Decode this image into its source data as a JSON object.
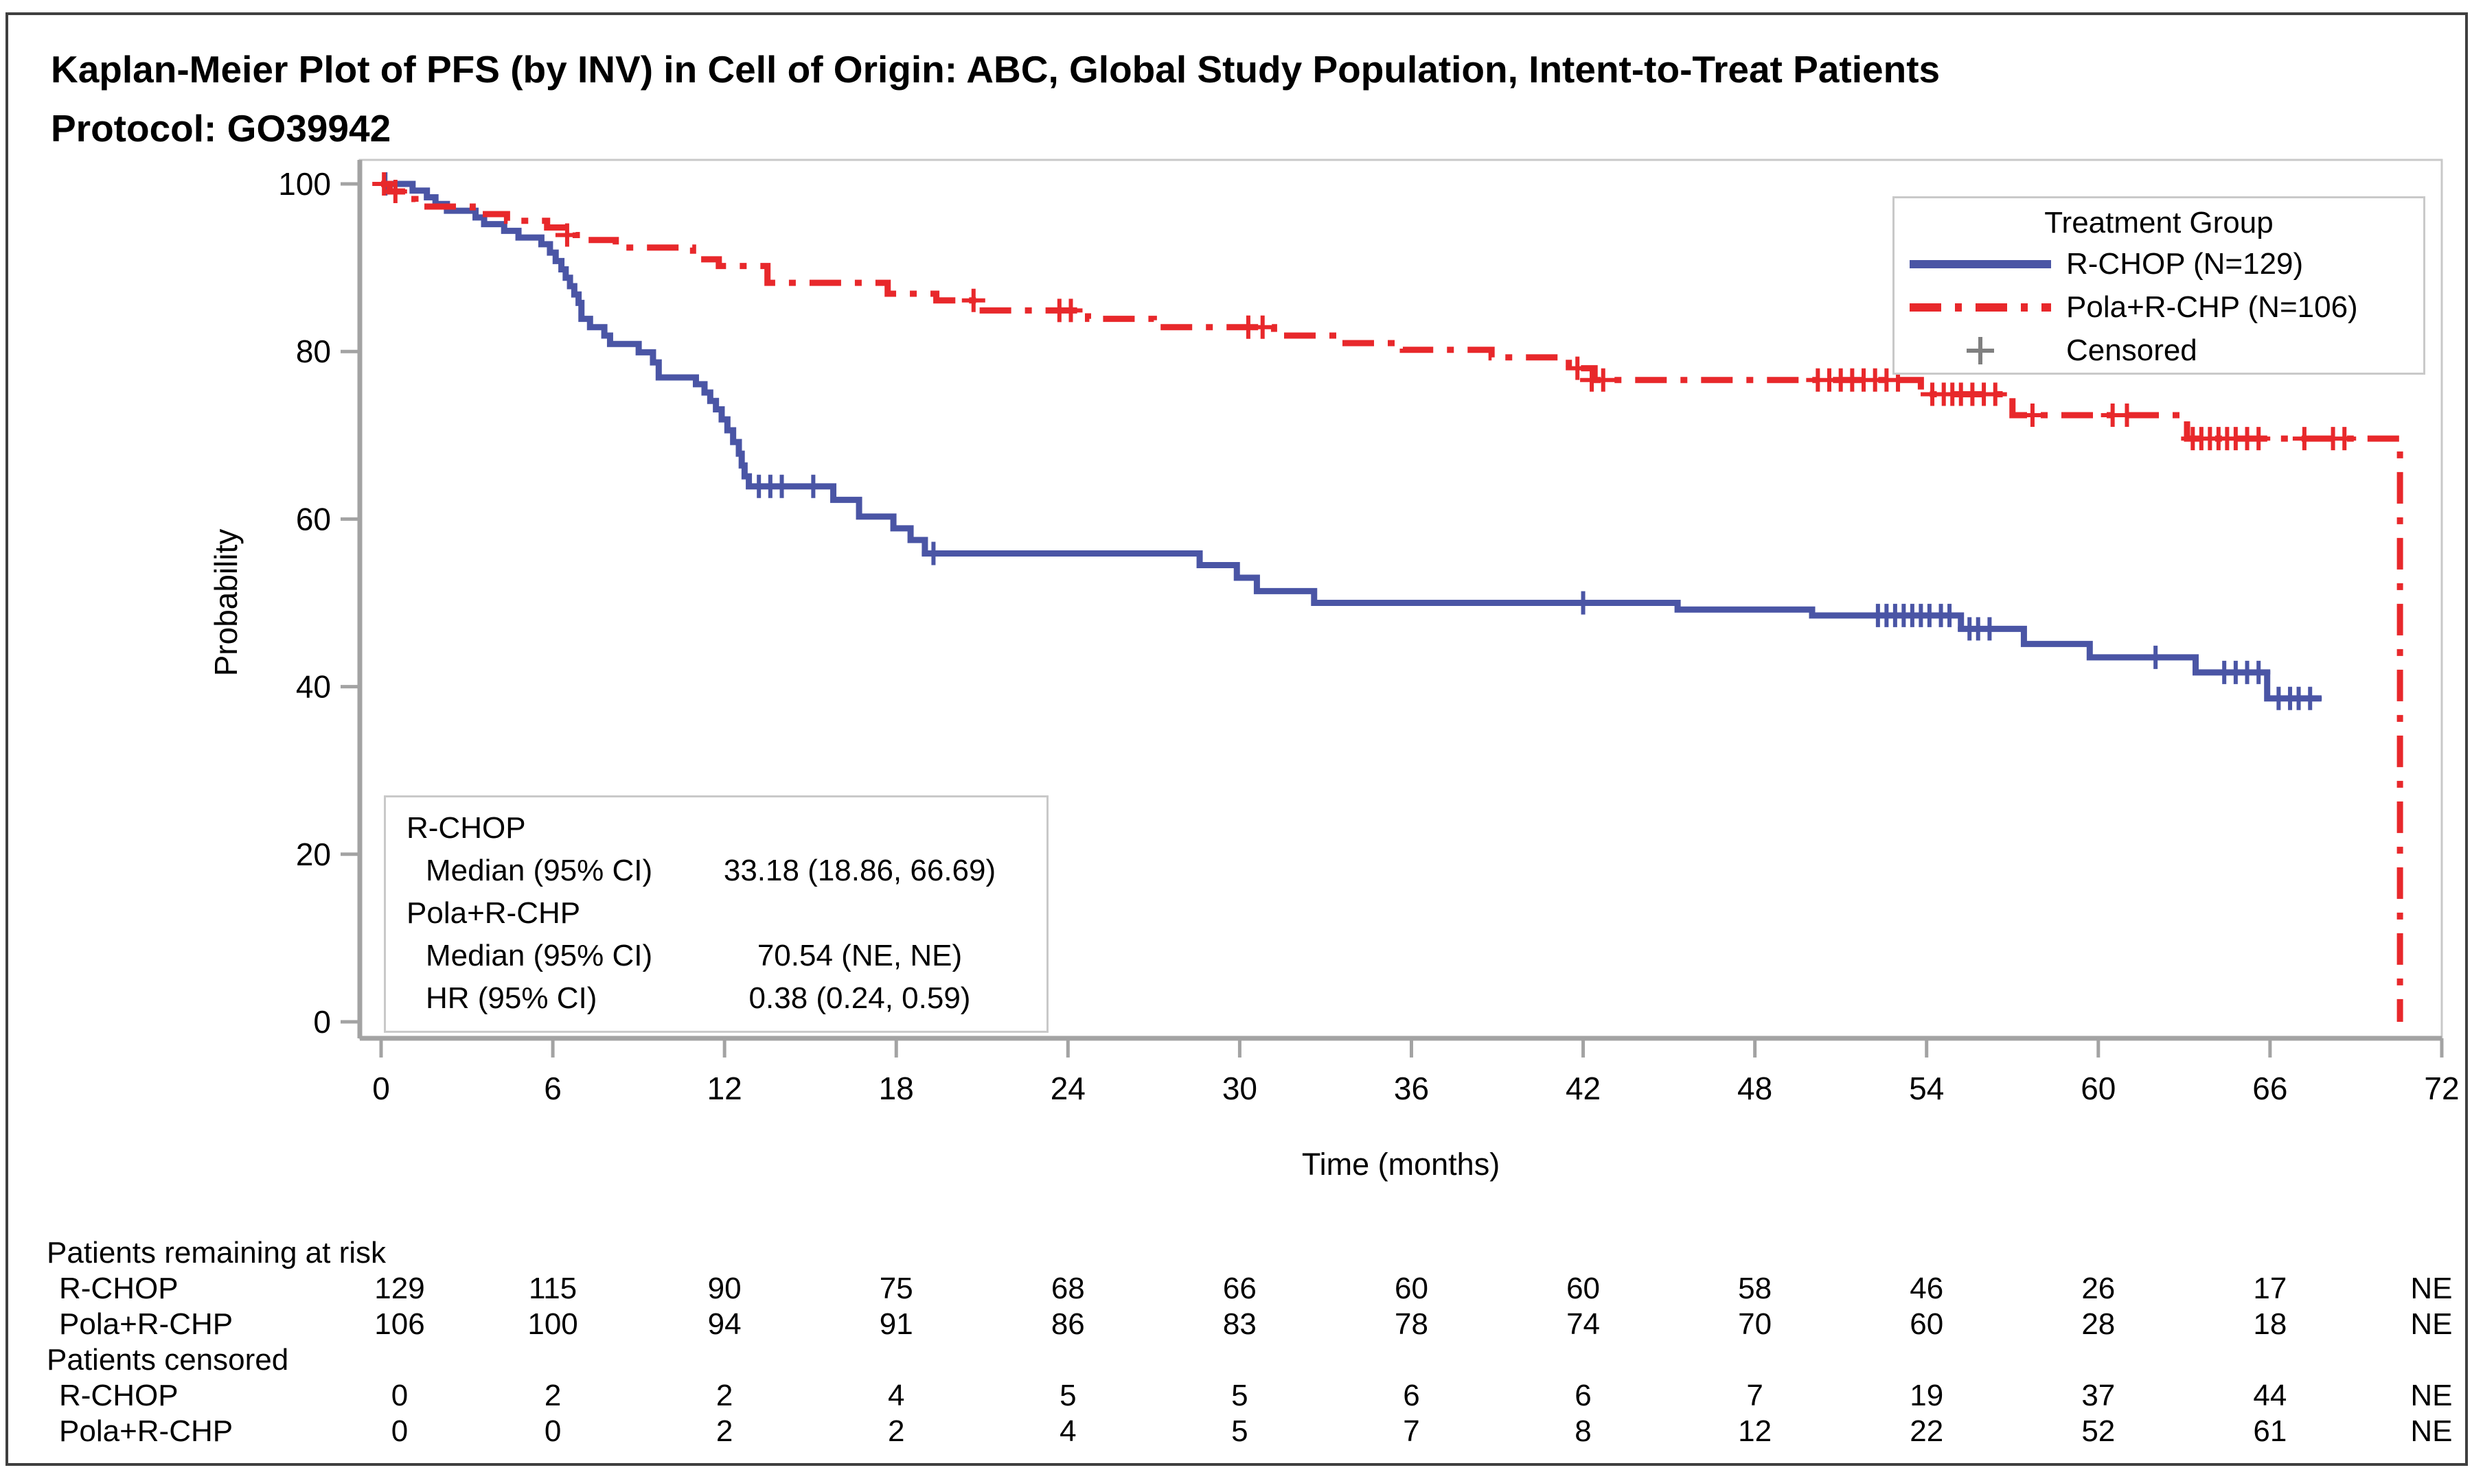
{
  "figure": {
    "title_line1": "Kaplan-Meier Plot of PFS (by INV) in Cell of Origin: ABC, Global Study Population, Intent-to-Treat Patients",
    "title_line2": "Protocol: GO39942"
  },
  "colors": {
    "rchop": "#4a55a5",
    "pola": "#e8282b",
    "censor_legend": "#808080",
    "axis": "#a3a3a3",
    "frame": "#c9c9c9"
  },
  "legend": {
    "title": "Treatment Group",
    "entries": [
      {
        "label": "R-CHOP (N=129)",
        "type": "solid",
        "color": "#4a55a5"
      },
      {
        "label": "Pola+R-CHP (N=106)",
        "type": "dashdot",
        "color": "#e8282b"
      },
      {
        "label": "Censored",
        "type": "plus",
        "color": "#808080"
      }
    ]
  },
  "stats_box": {
    "rows": [
      {
        "label": "R-CHOP",
        "value": "",
        "indent": false
      },
      {
        "label": "Median (95% CI)",
        "value": "33.18 (18.86, 66.69)",
        "indent": true
      },
      {
        "label": "Pola+R-CHP",
        "value": "",
        "indent": false
      },
      {
        "label": "Median (95% CI)",
        "value": "70.54 (NE, NE)",
        "indent": true
      },
      {
        "label": "HR (95% CI)",
        "value": "0.38 (0.24, 0.59)",
        "indent": true
      }
    ]
  },
  "chart_data": {
    "type": "line",
    "subtype": "kaplan-meier-step",
    "title": "Kaplan-Meier Plot of PFS (by INV) in Cell of Origin: ABC",
    "xlabel": "Time (months)",
    "ylabel": "Probability",
    "xlim": [
      0,
      72
    ],
    "ylim": [
      0,
      100
    ],
    "x_ticks": [
      0,
      6,
      12,
      18,
      24,
      30,
      36,
      42,
      48,
      54,
      60,
      66,
      72
    ],
    "y_ticks": [
      0,
      20,
      40,
      60,
      80,
      100
    ],
    "grid": false,
    "legend_position": "top-right-inside",
    "series": [
      {
        "name": "R-CHOP (N=129)",
        "color": "#4a55a5",
        "style": "solid",
        "steps": [
          [
            0,
            100
          ],
          [
            1.1,
            99.2
          ],
          [
            1.6,
            98.4
          ],
          [
            1.9,
            97.6
          ],
          [
            2.3,
            96.8
          ],
          [
            3.3,
            96.0
          ],
          [
            3.6,
            95.2
          ],
          [
            4.3,
            94.4
          ],
          [
            4.8,
            93.6
          ],
          [
            5.6,
            92.8
          ],
          [
            5.9,
            91.8
          ],
          [
            6.1,
            90.8
          ],
          [
            6.3,
            89.8
          ],
          [
            6.45,
            88.8
          ],
          [
            6.6,
            87.8
          ],
          [
            6.75,
            86.8
          ],
          [
            6.9,
            85.8
          ],
          [
            7.0,
            83.9
          ],
          [
            7.3,
            82.9
          ],
          [
            7.8,
            81.9
          ],
          [
            8.0,
            80.9
          ],
          [
            9.0,
            79.9
          ],
          [
            9.5,
            78.7
          ],
          [
            9.7,
            76.9
          ],
          [
            11.0,
            76.1
          ],
          [
            11.3,
            75.1
          ],
          [
            11.5,
            74.1
          ],
          [
            11.7,
            73.1
          ],
          [
            11.9,
            71.9
          ],
          [
            12.1,
            70.6
          ],
          [
            12.3,
            69.2
          ],
          [
            12.5,
            67.8
          ],
          [
            12.6,
            66.4
          ],
          [
            12.7,
            65.1
          ],
          [
            12.85,
            63.9
          ],
          [
            15.8,
            62.3
          ],
          [
            16.7,
            60.3
          ],
          [
            17.9,
            58.9
          ],
          [
            18.5,
            57.5
          ],
          [
            19.0,
            55.9
          ],
          [
            28.6,
            54.5
          ],
          [
            29.9,
            53.0
          ],
          [
            30.6,
            51.4
          ],
          [
            32.6,
            50.0
          ],
          [
            45.3,
            49.2
          ],
          [
            50.0,
            48.5
          ],
          [
            55.2,
            46.9
          ],
          [
            57.4,
            45.1
          ],
          [
            59.7,
            43.5
          ],
          [
            63.4,
            41.7
          ],
          [
            65.9,
            38.6
          ],
          [
            67.8,
            38.6
          ]
        ],
        "censors": [
          [
            0.15,
            100
          ],
          [
            13.2,
            63.9
          ],
          [
            13.6,
            63.9
          ],
          [
            14.0,
            63.9
          ],
          [
            15.1,
            63.9
          ],
          [
            19.3,
            55.9
          ],
          [
            42.0,
            50.0
          ],
          [
            52.3,
            48.5
          ],
          [
            52.6,
            48.5
          ],
          [
            52.9,
            48.5
          ],
          [
            53.2,
            48.5
          ],
          [
            53.5,
            48.5
          ],
          [
            53.8,
            48.5
          ],
          [
            54.1,
            48.5
          ],
          [
            54.5,
            48.5
          ],
          [
            54.8,
            48.5
          ],
          [
            55.5,
            46.9
          ],
          [
            55.8,
            46.9
          ],
          [
            56.2,
            46.9
          ],
          [
            62.0,
            43.5
          ],
          [
            64.4,
            41.7
          ],
          [
            64.8,
            41.7
          ],
          [
            65.2,
            41.7
          ],
          [
            65.6,
            41.7
          ],
          [
            66.3,
            38.6
          ],
          [
            66.7,
            38.6
          ],
          [
            67.0,
            38.6
          ],
          [
            67.4,
            38.6
          ]
        ],
        "median_95ci": "33.18 (18.86, 66.69)"
      },
      {
        "name": "Pola+R-CHP (N=106)",
        "color": "#e8282b",
        "style": "dashdot",
        "steps": [
          [
            0,
            100
          ],
          [
            0.3,
            99.1
          ],
          [
            0.9,
            98.2
          ],
          [
            1.2,
            97.3
          ],
          [
            3.2,
            96.4
          ],
          [
            4.4,
            95.6
          ],
          [
            5.8,
            94.8
          ],
          [
            6.8,
            93.9
          ],
          [
            7.0,
            93.3
          ],
          [
            8.2,
            92.4
          ],
          [
            10.9,
            91.0
          ],
          [
            11.8,
            90.2
          ],
          [
            13.5,
            88.2
          ],
          [
            17.7,
            86.9
          ],
          [
            19.4,
            86.1
          ],
          [
            20.9,
            84.9
          ],
          [
            24.7,
            83.9
          ],
          [
            27.0,
            82.9
          ],
          [
            31.2,
            81.9
          ],
          [
            33.5,
            81.0
          ],
          [
            35.7,
            80.2
          ],
          [
            38.8,
            79.3
          ],
          [
            41.5,
            78.0
          ],
          [
            42.4,
            76.6
          ],
          [
            53.8,
            74.9
          ],
          [
            57.0,
            72.4
          ],
          [
            63.1,
            69.6
          ],
          [
            70.54,
            0
          ]
        ],
        "censors": [
          [
            0.1,
            100
          ],
          [
            0.5,
            99.1
          ],
          [
            6.5,
            93.9
          ],
          [
            20.7,
            86.1
          ],
          [
            23.7,
            84.9
          ],
          [
            24.1,
            84.9
          ],
          [
            30.3,
            82.9
          ],
          [
            30.8,
            82.9
          ],
          [
            41.8,
            78.0
          ],
          [
            42.3,
            76.6
          ],
          [
            42.7,
            76.6
          ],
          [
            50.2,
            76.6
          ],
          [
            50.6,
            76.6
          ],
          [
            51.0,
            76.6
          ],
          [
            51.4,
            76.6
          ],
          [
            51.8,
            76.6
          ],
          [
            52.2,
            76.6
          ],
          [
            52.6,
            76.6
          ],
          [
            53.0,
            76.6
          ],
          [
            54.2,
            74.9
          ],
          [
            54.6,
            74.9
          ],
          [
            54.9,
            74.9
          ],
          [
            55.2,
            74.9
          ],
          [
            55.6,
            74.9
          ],
          [
            56.0,
            74.9
          ],
          [
            56.4,
            74.9
          ],
          [
            57.7,
            72.4
          ],
          [
            60.5,
            72.4
          ],
          [
            61.0,
            72.4
          ],
          [
            63.3,
            69.6
          ],
          [
            63.6,
            69.6
          ],
          [
            63.9,
            69.6
          ],
          [
            64.2,
            69.6
          ],
          [
            64.5,
            69.6
          ],
          [
            64.8,
            69.6
          ],
          [
            65.2,
            69.6
          ],
          [
            65.6,
            69.6
          ],
          [
            67.2,
            69.6
          ],
          [
            68.2,
            69.6
          ],
          [
            68.6,
            69.6
          ]
        ],
        "median_95ci": "70.54 (NE, NE)",
        "hr_95ci": "0.38 (0.24, 0.59)"
      }
    ]
  },
  "risk_table": {
    "sections": [
      {
        "header": "Patients remaining at risk",
        "rows": [
          {
            "label": "R-CHOP",
            "values": [
              "129",
              "115",
              "90",
              "75",
              "68",
              "66",
              "60",
              "60",
              "58",
              "46",
              "26",
              "17",
              "NE"
            ]
          },
          {
            "label": "Pola+R-CHP",
            "values": [
              "106",
              "100",
              "94",
              "91",
              "86",
              "83",
              "78",
              "74",
              "70",
              "60",
              "28",
              "18",
              "NE"
            ]
          }
        ]
      },
      {
        "header": "Patients censored",
        "rows": [
          {
            "label": "R-CHOP",
            "values": [
              "0",
              "2",
              "2",
              "4",
              "5",
              "5",
              "6",
              "6",
              "7",
              "19",
              "37",
              "44",
              "NE"
            ]
          },
          {
            "label": "Pola+R-CHP",
            "values": [
              "0",
              "0",
              "2",
              "2",
              "4",
              "5",
              "7",
              "8",
              "12",
              "22",
              "52",
              "61",
              "NE"
            ]
          }
        ]
      }
    ]
  }
}
